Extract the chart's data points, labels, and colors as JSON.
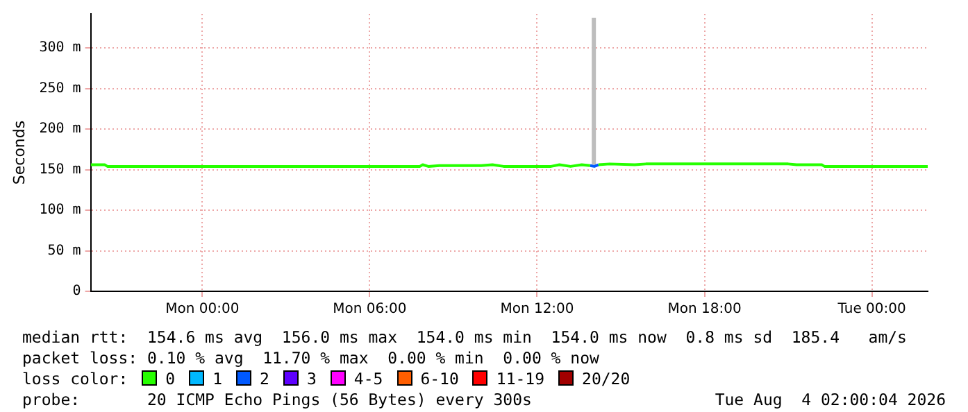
{
  "chart_data": {
    "type": "line",
    "ylabel": "Seconds",
    "xlim": [
      "2026-08-02T20:00",
      "2026-08-04T02:00"
    ],
    "ylim": [
      0,
      342
    ],
    "xticks": [
      {
        "value": "2026-08-03T00:00",
        "label": "Mon 00:00"
      },
      {
        "value": "2026-08-03T06:00",
        "label": "Mon 06:00"
      },
      {
        "value": "2026-08-03T12:00",
        "label": "Mon 12:00"
      },
      {
        "value": "2026-08-03T18:00",
        "label": "Mon 18:00"
      },
      {
        "value": "2026-08-04T00:00",
        "label": "Tue 00:00"
      }
    ],
    "yticks": [
      0,
      {
        "value": 50,
        "label": "50 m"
      },
      {
        "value": 100,
        "label": "100 m"
      },
      {
        "value": 150,
        "label": "150 m"
      },
      {
        "value": 200,
        "label": "200 m"
      },
      {
        "value": 250,
        "label": "250 m"
      },
      {
        "value": 300,
        "label": "300 m"
      }
    ],
    "grid": true,
    "legend": "bottom",
    "legend_title": "loss color:",
    "marker": "none",
    "line_style": "solid",
    "series": [
      {
        "name": "0",
        "color": "#26ff00",
        "x": [
          "2026-08-02T20:00",
          "2026-08-02T20:30",
          "2026-08-02T20:36",
          "2026-08-03T07:48",
          "2026-08-03T07:54",
          "2026-08-03T08:06",
          "2026-08-03T08:30",
          "2026-08-03T10:00",
          "2026-08-03T10:24",
          "2026-08-03T10:48",
          "2026-08-03T12:30",
          "2026-08-03T12:48",
          "2026-08-03T13:12",
          "2026-08-03T13:36",
          "2026-08-03T13:54",
          "2026-08-03T14:03",
          "2026-08-03T14:12",
          "2026-08-03T14:36",
          "2026-08-03T15:30",
          "2026-08-03T15:54",
          "2026-08-03T18:30",
          "2026-08-03T21:00",
          "2026-08-03T21:18",
          "2026-08-03T22:12",
          "2026-08-03T22:18",
          "2026-08-04T02:00"
        ],
        "values": [
          156,
          156,
          154,
          154,
          156,
          154,
          155,
          155,
          156,
          154,
          154,
          156,
          154,
          156,
          155,
          null,
          156,
          157,
          156,
          157,
          157,
          157,
          156,
          156,
          154,
          154
        ]
      },
      {
        "name": "1",
        "color": "#00b8ff"
      },
      {
        "name": "2",
        "color": "#0059ff",
        "x": [
          "2026-08-03T13:54",
          "2026-08-03T14:03",
          "2026-08-03T14:12"
        ],
        "values": [
          155,
          154,
          156
        ]
      },
      {
        "name": "3",
        "color": "#5e00ff"
      },
      {
        "name": "4-5",
        "color": "#ff00ff"
      },
      {
        "name": "6-10",
        "color": "#ff5e00"
      },
      {
        "name": "11-19",
        "color": "#ff0000"
      },
      {
        "name": "20/20",
        "color": "#a10000"
      },
      {
        "type": "line",
        "color": "#bdbdbd",
        "x": [
          "2026-08-03T14:02",
          "2026-08-03T14:02"
        ],
        "values": [
          156,
          337
        ]
      }
    ],
    "annotations": [
      "median rtt:  154.6 ms avg  156.0 ms max  154.0 ms min  154.0 ms now  0.8 ms sd  185.4   am/s",
      "packet loss: 0.10 % avg  11.70 % max  0.00 % min  0.00 % now",
      "probe:       20 ICMP Echo Pings (56 Bytes) every 300s",
      "Tue Aug  4 02:00:04 2026"
    ]
  }
}
